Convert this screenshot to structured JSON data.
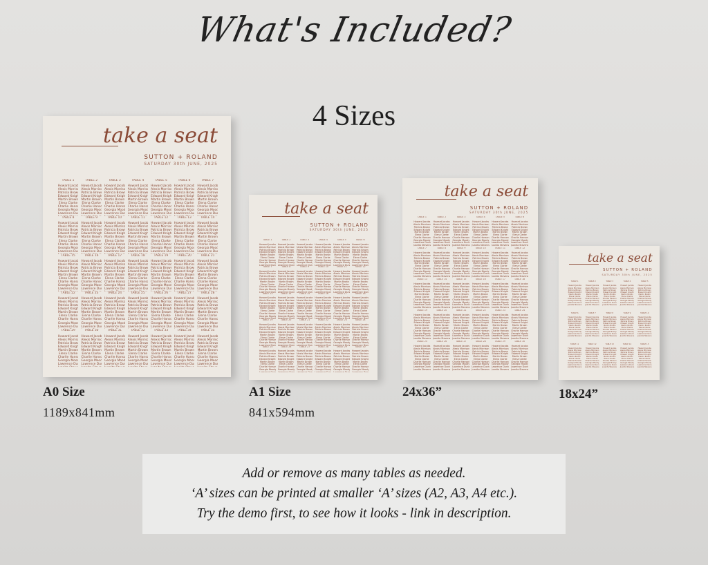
{
  "headline": "What's Included?",
  "subheadline": "4 Sizes",
  "poster_content": {
    "title": "take a seat",
    "couple": "SUTTON + ROLAND",
    "date": "SATURDAY 30th JUNE, 2025",
    "table_label": "TABLE",
    "guests": [
      "Howard Jacobs",
      "Alexis Morrison",
      "Patricia Brown",
      "Edward Knight",
      "Martin Brown",
      "Elena Clarke",
      "Charlie Hanson",
      "Georgia Moody",
      "Lawrence Dunn",
      "Juanita Stevens"
    ],
    "text_color": "#8a4a36",
    "paper_color": "#ede9e3"
  },
  "sizes": [
    {
      "name": "A0 Size",
      "dimensions": "1189x841mm",
      "columns": 7,
      "rows": 5
    },
    {
      "name": "A1 Size",
      "dimensions": "841x594mm",
      "columns": 6,
      "rows": 5
    },
    {
      "name": "24x36”",
      "columns": 6,
      "rows": 5
    },
    {
      "name": "18x24”",
      "columns": 5,
      "rows": 3
    }
  ],
  "notes": [
    "Add or remove as many tables as needed.",
    "‘A’ sizes can be printed at smaller ‘A’ sizes (A2, A3, A4 etc.).",
    "Try the demo first, to see how it looks - link in description."
  ]
}
